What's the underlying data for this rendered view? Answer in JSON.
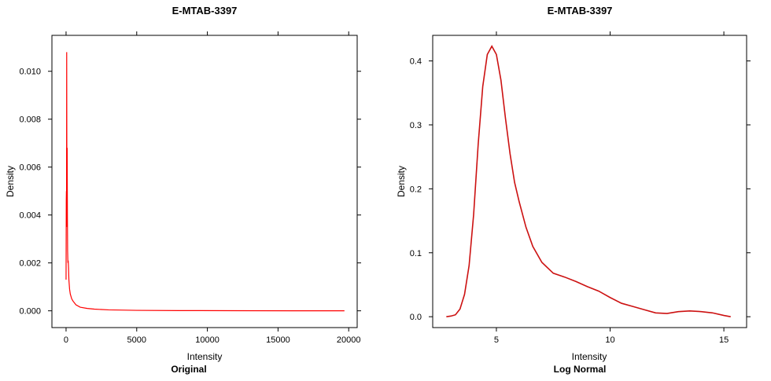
{
  "chart_data": [
    {
      "type": "line",
      "title": "E-MTAB-3397",
      "xlabel": "Intensity",
      "ylabel": "Density",
      "subtitle": "Original",
      "xlim": [
        -1000,
        20600
      ],
      "ylim": [
        -0.0007,
        0.0115
      ],
      "xticks": [
        0,
        5000,
        10000,
        15000,
        20000
      ],
      "xtick_labels": [
        "0",
        "5000",
        "10000",
        "15000",
        "20000"
      ],
      "yticks": [
        0.0,
        0.002,
        0.004,
        0.006,
        0.008,
        0.01
      ],
      "ytick_labels": [
        "0.000",
        "0.002",
        "0.004",
        "0.006",
        "0.008",
        "0.010"
      ],
      "grid": false,
      "series": [
        {
          "color": "#ff0000",
          "x": [
            0,
            15,
            25,
            35,
            45,
            55,
            65,
            80,
            95,
            110,
            130,
            150,
            175,
            200,
            250,
            300,
            400,
            500,
            700,
            1000,
            1500,
            2000,
            3000,
            5000,
            8000,
            12000,
            16000,
            19700
          ],
          "y": [
            0.0013,
            0.0046,
            0.005,
            0.0045,
            0.0108,
            0.007,
            0.0035,
            0.0068,
            0.004,
            0.0025,
            0.002,
            0.0021,
            0.0018,
            0.0013,
            0.0009,
            0.0007,
            0.0005,
            0.0004,
            0.00025,
            0.00015,
            0.0001,
            7e-05,
            4e-05,
            2e-05,
            1e-05,
            5e-06,
            2e-06,
            0.0
          ]
        }
      ]
    },
    {
      "type": "line",
      "title": "E-MTAB-3397",
      "xlabel": "Intensity",
      "ylabel": "Density",
      "subtitle": "Log Normal",
      "xlim": [
        2.2,
        16.0
      ],
      "ylim": [
        -0.017,
        0.44
      ],
      "xticks": [
        5,
        10,
        15
      ],
      "xtick_labels": [
        "5",
        "10",
        "15"
      ],
      "yticks": [
        0.0,
        0.1,
        0.2,
        0.3,
        0.4
      ],
      "ytick_labels": [
        "0.0",
        "0.1",
        "0.2",
        "0.3",
        "0.4"
      ],
      "grid": false,
      "series": [
        {
          "color": "#cc1111",
          "x": [
            2.8,
            3.0,
            3.2,
            3.4,
            3.6,
            3.8,
            4.0,
            4.2,
            4.4,
            4.6,
            4.8,
            5.0,
            5.2,
            5.4,
            5.6,
            5.8,
            6.0,
            6.3,
            6.6,
            7.0,
            7.5,
            8.0,
            8.5,
            9.0,
            9.5,
            10.0,
            10.5,
            11.0,
            11.5,
            12.0,
            12.5,
            13.0,
            13.5,
            14.0,
            14.5,
            15.0,
            15.3
          ],
          "y": [
            0.0,
            0.001,
            0.003,
            0.012,
            0.035,
            0.08,
            0.16,
            0.27,
            0.36,
            0.41,
            0.423,
            0.41,
            0.37,
            0.31,
            0.255,
            0.21,
            0.18,
            0.14,
            0.11,
            0.085,
            0.068,
            0.062,
            0.055,
            0.047,
            0.04,
            0.03,
            0.021,
            0.016,
            0.011,
            0.006,
            0.005,
            0.008,
            0.009,
            0.008,
            0.006,
            0.002,
            0.0
          ]
        }
      ]
    }
  ]
}
